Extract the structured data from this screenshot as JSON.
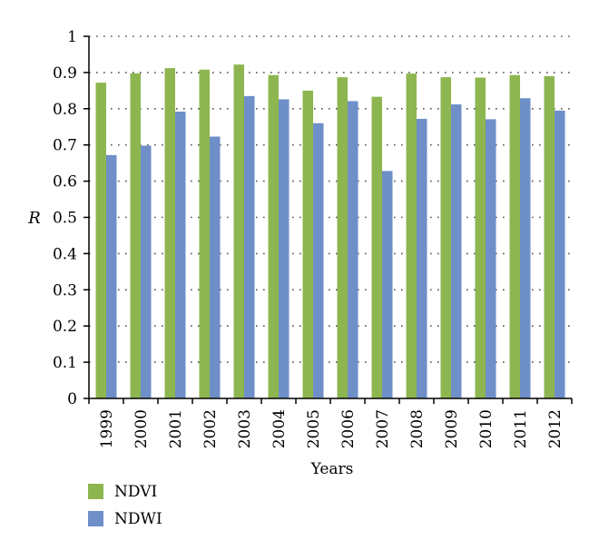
{
  "chart_data": {
    "type": "bar",
    "categories": [
      "1999",
      "2000",
      "2001",
      "2002",
      "2003",
      "2004",
      "2005",
      "2006",
      "2007",
      "2008",
      "2009",
      "2010",
      "2011",
      "2012"
    ],
    "series": [
      {
        "name": "NDVI",
        "color": "#8db650",
        "values": [
          0.872,
          0.898,
          0.912,
          0.908,
          0.922,
          0.893,
          0.85,
          0.887,
          0.833,
          0.897,
          0.887,
          0.886,
          0.893,
          0.89
        ]
      },
      {
        "name": "NDWI",
        "color": "#6f8fc8",
        "values": [
          0.672,
          0.698,
          0.792,
          0.723,
          0.835,
          0.826,
          0.76,
          0.821,
          0.628,
          0.772,
          0.812,
          0.771,
          0.829,
          0.795
        ]
      }
    ],
    "xlabel": "Years",
    "ylabel": "R",
    "ylim": [
      0,
      1
    ],
    "yticks": [
      "0",
      "0.1",
      "0.2",
      "0.3",
      "0.4",
      "0.5",
      "0.6",
      "0.7",
      "0.8",
      "0.9",
      "1"
    ],
    "grid": "dotted horizontal",
    "legend": "bottom-left"
  }
}
